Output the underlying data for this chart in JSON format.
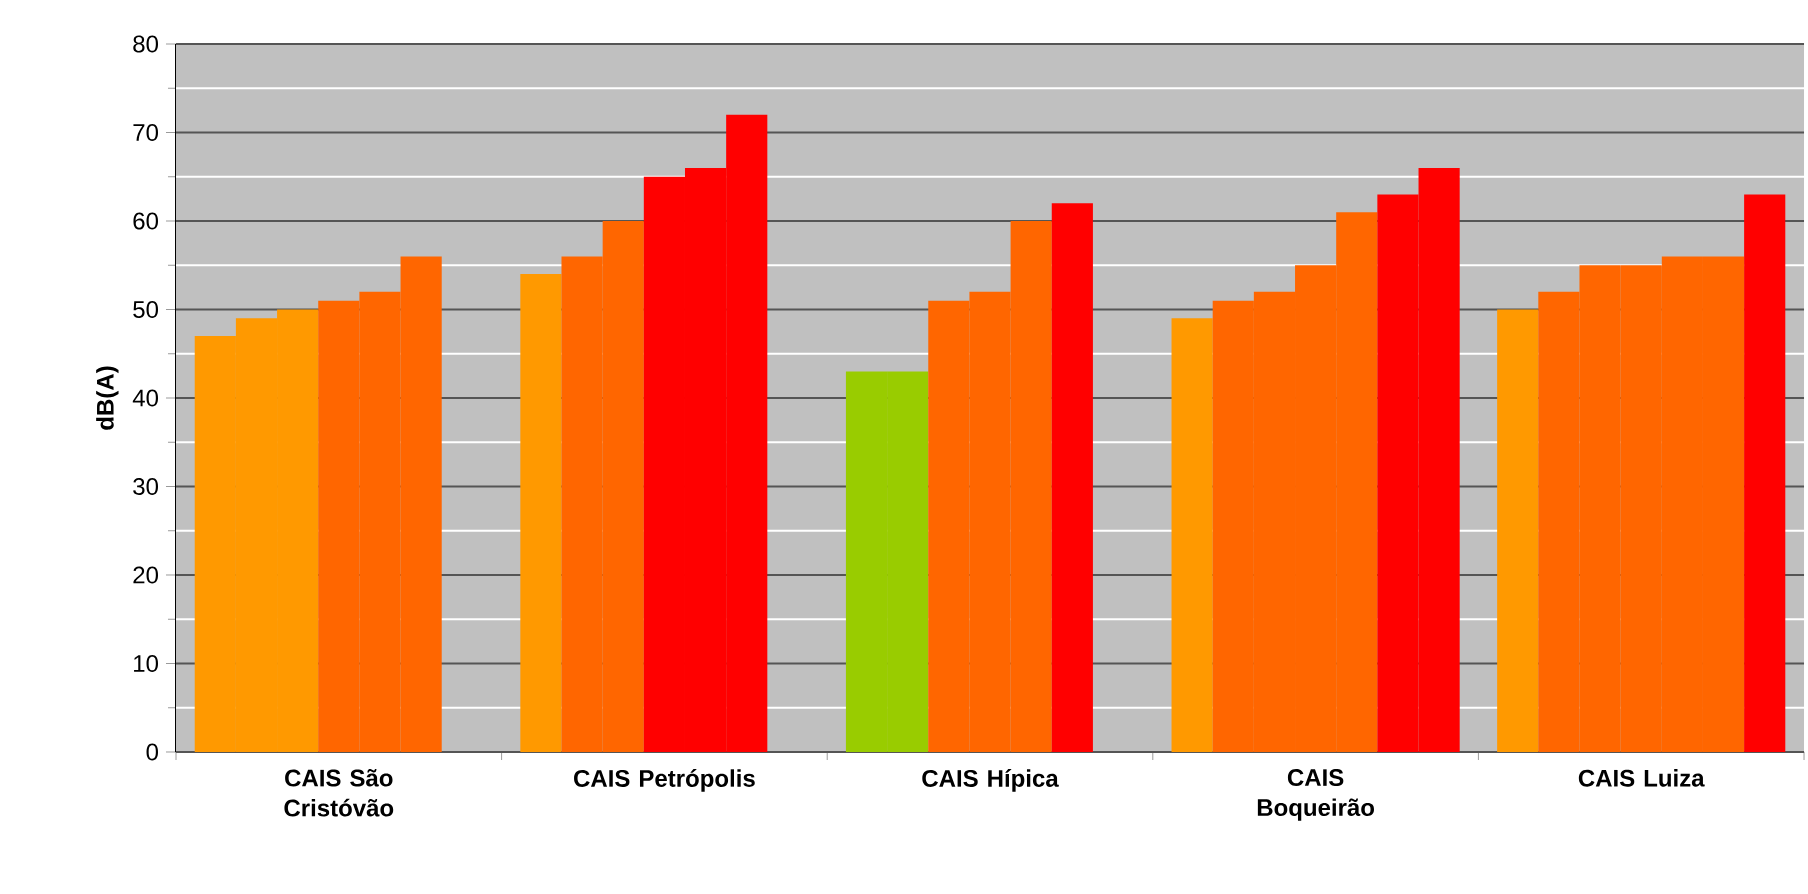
{
  "chart_data": {
    "type": "bar",
    "ylabel": "dB(A)",
    "categories": [
      "CAIS São Cristóvão",
      "CAIS Petrópolis",
      "CAIS Hípica",
      "CAIS Boqueirão",
      "CAIS Luiza"
    ],
    "series": [
      {
        "values": [
          47,
          54,
          43,
          49,
          50
        ],
        "colors": [
          "#ff9900",
          "#ff9900",
          "#99cc00",
          "#ff9900",
          "#ff9900"
        ]
      },
      {
        "values": [
          49,
          56,
          43,
          51,
          52
        ],
        "colors": [
          "#ff9900",
          "#ff6600",
          "#99cc00",
          "#ff6600",
          "#ff6600"
        ]
      },
      {
        "values": [
          50,
          60,
          51,
          52,
          55
        ],
        "colors": [
          "#ff9900",
          "#ff6600",
          "#ff6600",
          "#ff6600",
          "#ff6600"
        ]
      },
      {
        "values": [
          51,
          65,
          52,
          55,
          55
        ],
        "colors": [
          "#ff6600",
          "#ff0000",
          "#ff6600",
          "#ff6600",
          "#ff6600"
        ]
      },
      {
        "values": [
          52,
          66,
          60,
          61,
          56
        ],
        "colors": [
          "#ff6600",
          "#ff0000",
          "#ff6600",
          "#ff6600",
          "#ff6600"
        ]
      },
      {
        "values": [
          56,
          72,
          62,
          63,
          56
        ],
        "colors": [
          "#ff6600",
          "#ff0000",
          "#ff0000",
          "#ff0000",
          "#ff6600"
        ]
      },
      {
        "values": [
          null,
          null,
          null,
          66,
          63
        ],
        "colors": [
          null,
          null,
          null,
          "#ff0000",
          "#ff0000"
        ]
      }
    ],
    "ylim": [
      0,
      80
    ],
    "yticks": [
      0,
      10,
      20,
      30,
      40,
      50,
      60,
      70,
      80
    ],
    "grid": "y"
  }
}
